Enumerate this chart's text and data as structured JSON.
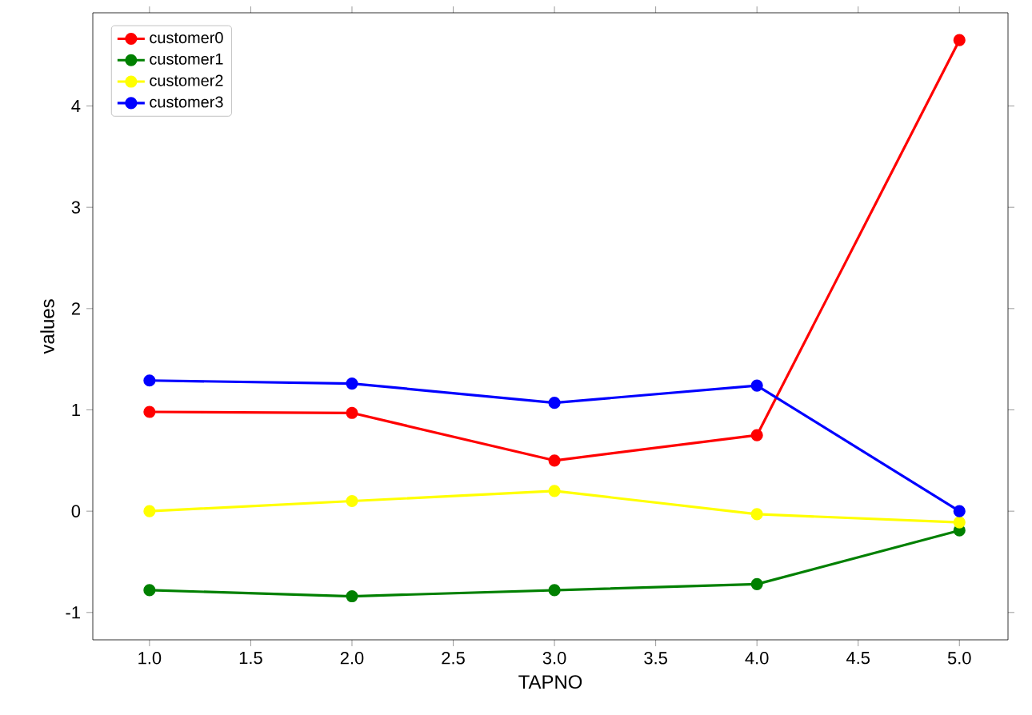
{
  "chart_data": {
    "type": "line",
    "xlabel": "TAPNO",
    "ylabel": "values",
    "x": [
      1.0,
      2.0,
      3.0,
      4.0,
      5.0
    ],
    "series": [
      {
        "name": "customer0",
        "color": "#ff0000",
        "values": [
          0.98,
          0.97,
          0.5,
          0.75,
          4.65
        ]
      },
      {
        "name": "customer1",
        "color": "#008000",
        "values": [
          -0.78,
          -0.84,
          -0.78,
          -0.72,
          -0.19
        ]
      },
      {
        "name": "customer2",
        "color": "#ffff00",
        "values": [
          0.0,
          0.1,
          0.2,
          -0.03,
          -0.11
        ]
      },
      {
        "name": "customer3",
        "color": "#0000ff",
        "values": [
          1.29,
          1.26,
          1.07,
          1.24,
          0.0
        ]
      }
    ],
    "xlim": [
      0.72,
      5.24
    ],
    "ylim": [
      -1.27,
      4.92
    ],
    "xticks": [
      {
        "value": 1.0,
        "label": "1.0"
      },
      {
        "value": 1.5,
        "label": "1.5"
      },
      {
        "value": 2.0,
        "label": "2.0"
      },
      {
        "value": 2.5,
        "label": "2.5"
      },
      {
        "value": 3.0,
        "label": "3.0"
      },
      {
        "value": 3.5,
        "label": "3.5"
      },
      {
        "value": 4.0,
        "label": "4.0"
      },
      {
        "value": 4.5,
        "label": "4.5"
      },
      {
        "value": 5.0,
        "label": "5.0"
      }
    ],
    "yticks": [
      -1,
      0,
      1,
      2,
      3,
      4
    ],
    "legend": "top left",
    "marker": "circle",
    "line_style": "solid",
    "grid": false
  }
}
